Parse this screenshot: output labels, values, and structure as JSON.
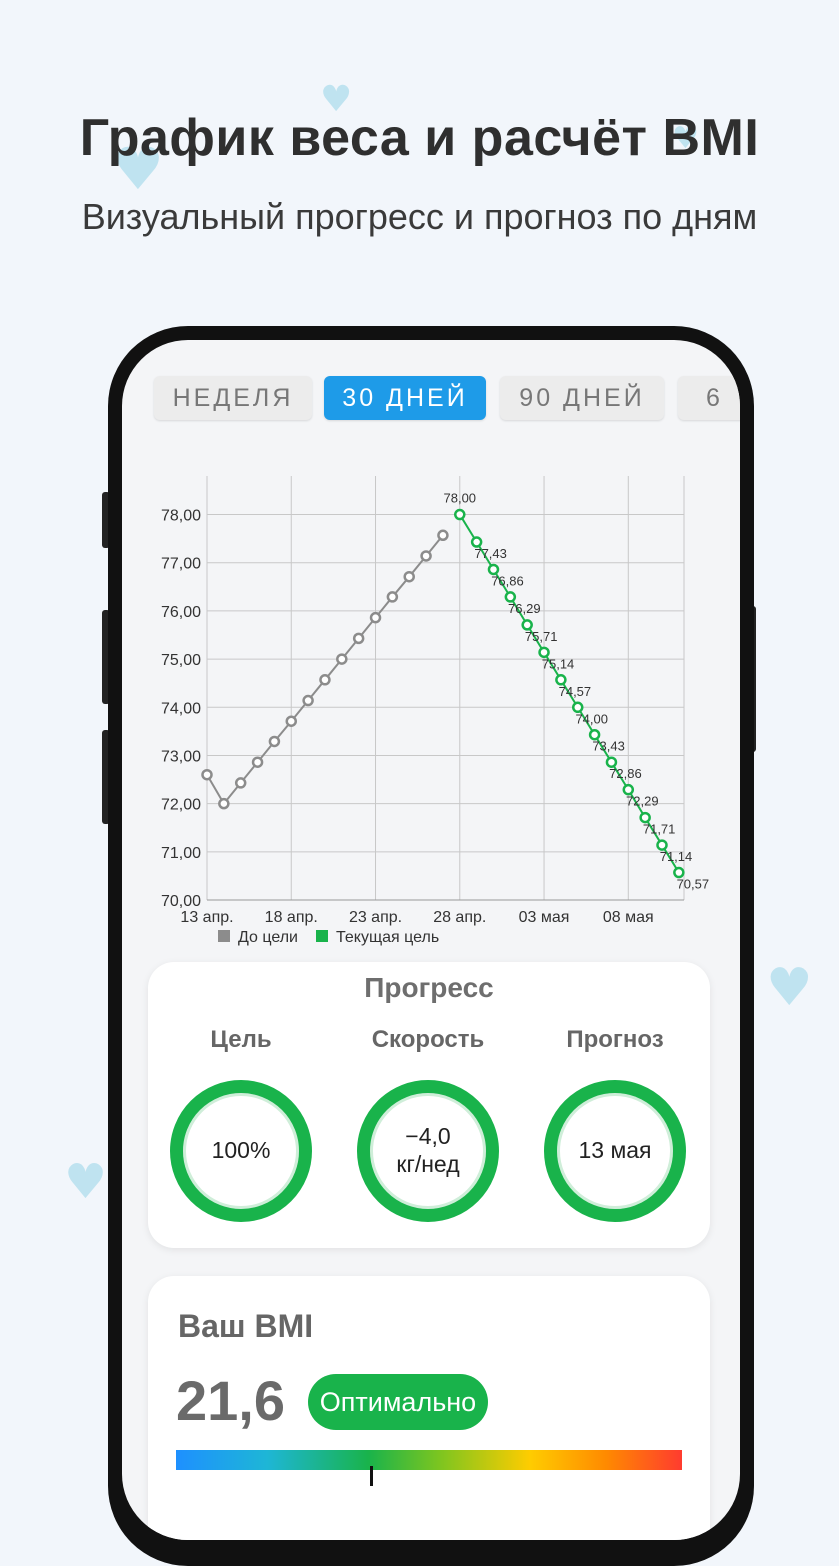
{
  "promo": {
    "title": "График веса и расчёт BMI",
    "subtitle": "Визуальный прогресс и прогноз по дням"
  },
  "tabs": [
    {
      "label": "НЕДЕЛЯ",
      "active": false
    },
    {
      "label": "30 ДНЕЙ",
      "active": true
    },
    {
      "label": "90 ДНЕЙ",
      "active": false
    },
    {
      "label": "6",
      "active": false
    }
  ],
  "chart_data": {
    "type": "line",
    "title": "",
    "xlabel": "",
    "ylabel": "",
    "ylim": [
      70,
      78.8
    ],
    "yticks": [
      "78,00",
      "77,00",
      "76,00",
      "75,00",
      "74,00",
      "73,00",
      "72,00",
      "71,00",
      "70,00"
    ],
    "xticks": [
      "13 апр.",
      "18 апр.",
      "23 апр.",
      "28 апр.",
      "03 мая",
      "08 мая"
    ],
    "legend_position": "bottom",
    "grid": true,
    "series": [
      {
        "name": "До цели",
        "color": "#8c8c8c",
        "x": [
          "13 апр.",
          "14 апр.",
          "15 апр.",
          "16 апр.",
          "17 апр.",
          "18 апр.",
          "19 апр.",
          "20 апр.",
          "21 апр.",
          "22 апр.",
          "23 апр.",
          "24 апр.",
          "25 апр.",
          "26 апр.",
          "27 апр."
        ],
        "values": [
          72.6,
          72.0,
          72.43,
          72.86,
          73.29,
          73.71,
          74.14,
          74.57,
          75.0,
          75.43,
          75.86,
          76.29,
          76.71,
          77.14,
          77.57
        ]
      },
      {
        "name": "Текущая цель",
        "color": "#19b34b",
        "x": [
          "28 апр.",
          "29 апр.",
          "30 апр.",
          "01 мая",
          "02 мая",
          "03 мая",
          "04 мая",
          "05 мая",
          "06 мая",
          "07 мая",
          "08 мая",
          "09 мая",
          "10 мая",
          "11 мая"
        ],
        "values": [
          78.0,
          77.43,
          76.86,
          76.29,
          75.71,
          75.14,
          74.57,
          74.0,
          73.43,
          72.86,
          72.29,
          71.71,
          71.14,
          70.57
        ],
        "labels": [
          "78,00",
          "77,43",
          "76,86",
          "76,29",
          "75,71",
          "75,14",
          "74,57",
          "74,00",
          "73,43",
          "72,86",
          "72,29",
          "71,71",
          "71,14",
          "70,57"
        ]
      }
    ]
  },
  "progress": {
    "title": "Прогресс",
    "goal_label": "Цель",
    "goal_value": "100%",
    "speed_label": "Скорость",
    "speed_value_1": "−4,0",
    "speed_value_2": "кг/нед",
    "forecast_label": "Прогноз",
    "forecast_value": "13 мая"
  },
  "bmi": {
    "title": "Ваш BMI",
    "value": "21,6",
    "status": "Оптимально",
    "status_color": "#19b34b"
  }
}
